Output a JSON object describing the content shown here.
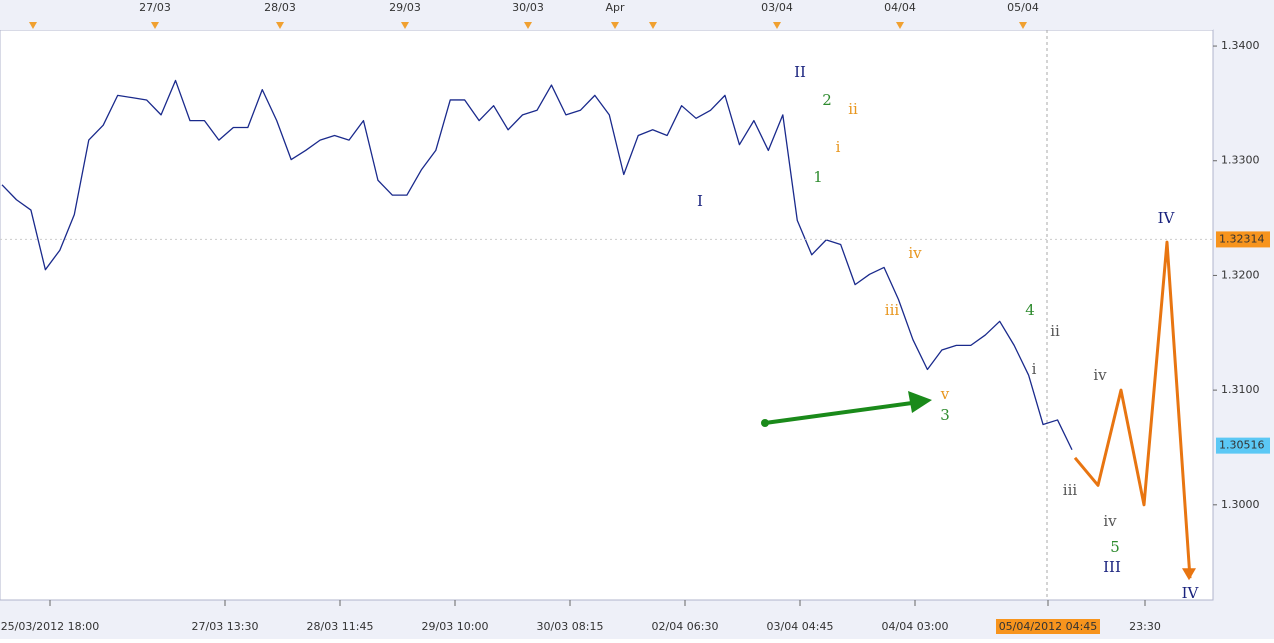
{
  "chart_data": {
    "type": "line",
    "series": [
      {
        "color": "#1a2a8c",
        "values": [
          1.3279,
          1.3266,
          1.3257,
          1.3205,
          1.3222,
          1.3253,
          1.3318,
          1.3331,
          1.3357,
          1.3355,
          1.3353,
          1.334,
          1.337,
          1.3335,
          1.3335,
          1.3318,
          1.3329,
          1.3329,
          1.3362,
          1.3335,
          1.3301,
          1.3309,
          1.3318,
          1.3322,
          1.3318,
          1.3335,
          1.3283,
          1.327,
          1.327,
          1.3292,
          1.3309,
          1.3353,
          1.3353,
          1.3335,
          1.3348,
          1.3327,
          1.334,
          1.3344,
          1.3366,
          1.334,
          1.3344,
          1.3357,
          1.334,
          1.3288,
          1.3322,
          1.3327,
          1.3322,
          1.3348,
          1.3337,
          1.3344,
          1.3357,
          1.3314,
          1.3335,
          1.3309,
          1.334,
          1.3248,
          1.3218,
          1.3231,
          1.3227,
          1.3192,
          1.3201,
          1.3207,
          1.3179,
          1.3144,
          1.3118,
          1.3135,
          1.3139,
          1.3139,
          1.3148,
          1.316,
          1.3139,
          1.3113,
          1.307,
          1.3074,
          1.3048
        ]
      },
      {
        "color": "#e87511",
        "values": [
          1.3041,
          1.3017,
          1.31,
          1.3,
          1.3229,
          1.2936
        ]
      }
    ],
    "ylim": [
      1.2917,
      1.3414
    ],
    "yticks": [
      {
        "value": 1.3,
        "label": "1.3000"
      },
      {
        "value": 1.31,
        "label": "1.3100"
      },
      {
        "value": 1.32,
        "label": "1.3200"
      },
      {
        "value": 1.33,
        "label": "1.3300"
      },
      {
        "value": 1.34,
        "label": "1.3400"
      }
    ],
    "price_tags": [
      {
        "value": 1.32314,
        "color": "#f7941d"
      },
      {
        "value": 1.30516,
        "color": "#5bc8f5"
      }
    ],
    "top_labels": [
      "27/03",
      "28/03",
      "29/03",
      "30/03",
      "Apr",
      "03/04",
      "04/04",
      "05/04"
    ],
    "bottom_labels": [
      "25/03/2012 18:00",
      "27/03 13:30",
      "28/03 11:45",
      "29/03 10:00",
      "30/03 08:15",
      "02/04 06:30",
      "03/04 04:45",
      "04/04 03:00",
      "05/04/2012 04:45",
      "23:30"
    ],
    "wave_labels": [
      {
        "text": "I",
        "color": "#1a237e"
      },
      {
        "text": "II",
        "color": "#1a237e"
      },
      {
        "text": "1",
        "color": "#2e8b2e"
      },
      {
        "text": "2",
        "color": "#2e8b2e"
      },
      {
        "text": "i",
        "color": "#e8961e"
      },
      {
        "text": "ii",
        "color": "#e8961e"
      },
      {
        "text": "iii",
        "color": "#e8961e"
      },
      {
        "text": "iv",
        "color": "#e8961e"
      },
      {
        "text": "v",
        "color": "#e8961e"
      },
      {
        "text": "3",
        "color": "#2e8b2e"
      },
      {
        "text": "4",
        "color": "#2e8b2e"
      },
      {
        "text": "ii",
        "color": "#555555"
      },
      {
        "text": "i",
        "color": "#555555"
      },
      {
        "text": "iv",
        "color": "#555555"
      },
      {
        "text": "iii",
        "color": "#555555"
      },
      {
        "text": "iv",
        "color": "#555555"
      },
      {
        "text": "5",
        "color": "#2e8b2e"
      },
      {
        "text": "III",
        "color": "#1a237e"
      },
      {
        "text": "IV",
        "color": "#1a237e"
      },
      {
        "text": "IV",
        "color": "#1a237e"
      }
    ]
  }
}
